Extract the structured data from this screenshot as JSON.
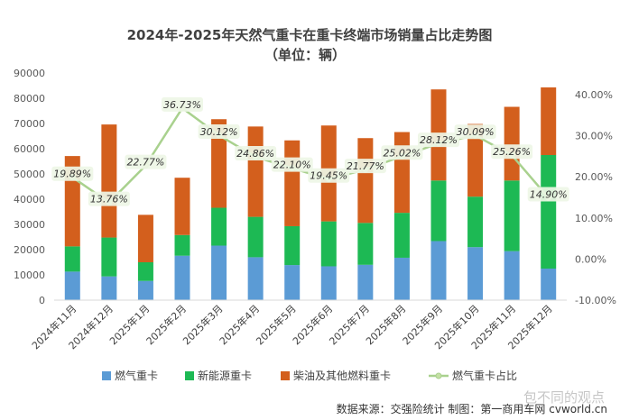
{
  "chart_data": {
    "type": "bar",
    "stacked": true,
    "title": "2024年-2025年天然气重卡在重卡终端市场销量占比走势图",
    "subtitle": "（单位：辆）",
    "categories": [
      "2024年11月",
      "2024年12月",
      "2025年1月",
      "2025年2月",
      "2025年3月",
      "2025年4月",
      "2025年5月",
      "2025年6月",
      "2025年7月",
      "2025年8月",
      "2025年9月",
      "2025年10月",
      "2025年11月",
      "2025年12月"
    ],
    "series": [
      {
        "name": "燃气重卡",
        "color": "#5b9bd5",
        "values": [
          11300,
          9400,
          7600,
          17600,
          21600,
          17000,
          13900,
          13400,
          14000,
          16800,
          23400,
          21000,
          19400,
          12500
        ]
      },
      {
        "name": "新能源重卡",
        "color": "#1db954",
        "values": [
          10000,
          15400,
          7400,
          8200,
          15000,
          16000,
          15400,
          17800,
          16600,
          17800,
          24000,
          20000,
          28000,
          45000
        ]
      },
      {
        "name": "柴油及其他燃料重卡",
        "color": "#d35f1d",
        "values": [
          35800,
          44800,
          18800,
          22700,
          35100,
          35800,
          34000,
          38000,
          33600,
          32000,
          36100,
          28800,
          29200,
          26800
        ]
      }
    ],
    "line_series": {
      "name": "燃气重卡占比",
      "color": "#a9d18e",
      "values": [
        19.89,
        13.76,
        22.77,
        36.73,
        30.12,
        24.86,
        22.1,
        19.45,
        21.77,
        25.02,
        28.12,
        30.09,
        25.26,
        14.9
      ]
    },
    "line_labels": [
      "19.89%",
      "13.76%",
      "22.77%",
      "36.73%",
      "30.12%",
      "24.86%",
      "22.10%",
      "19.45%",
      "21.77%",
      "25.02%",
      "28.12%",
      "30.09%",
      "25.26%",
      "14.90%"
    ],
    "ylim_left": [
      0,
      90000
    ],
    "yticks_left": [
      "0",
      "10000",
      "20000",
      "30000",
      "40000",
      "50000",
      "60000",
      "70000",
      "80000",
      "90000"
    ],
    "ylim_right": [
      -10,
      45
    ],
    "yticks_right": [
      "-10.00%",
      "0.00%",
      "10.00%",
      "20.00%",
      "30.00%",
      "40.00%"
    ],
    "legend_position": "bottom",
    "grid": false
  },
  "source_text": "数据来源：交强险统计  制图：第一商用车网 cvworld.cn",
  "watermark": "包不同的观点"
}
